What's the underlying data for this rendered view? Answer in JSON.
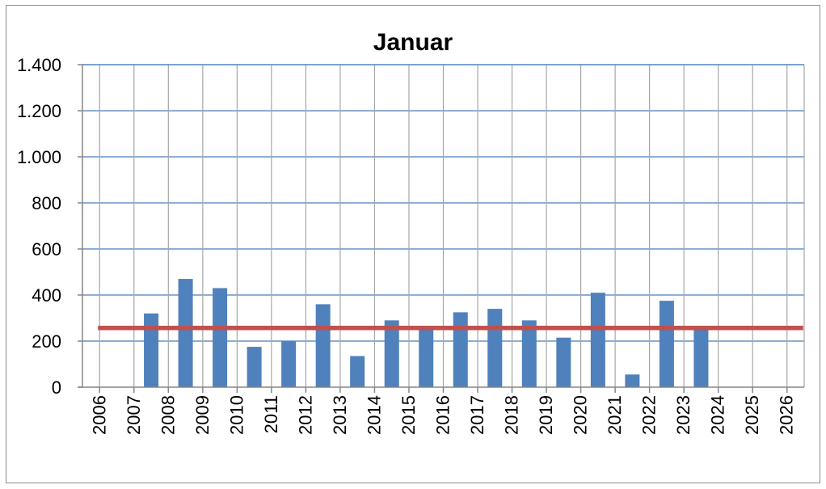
{
  "chart_data": {
    "type": "bar",
    "title": "Januar",
    "xlabel": "",
    "ylabel": "",
    "categories": [
      "2006",
      "2007",
      "2008",
      "2009",
      "2010",
      "2011",
      "2012",
      "2013",
      "2014",
      "2015",
      "2016",
      "2017",
      "2018",
      "2019",
      "2020",
      "2021",
      "2022",
      "2023",
      "2024",
      "2025",
      "2026"
    ],
    "values": [
      null,
      320,
      470,
      430,
      175,
      200,
      360,
      135,
      290,
      255,
      325,
      340,
      290,
      215,
      410,
      55,
      375,
      255,
      null,
      null,
      null
    ],
    "reference_line": 257,
    "ylim": [
      0,
      1400
    ],
    "yticks": [
      0,
      200,
      400,
      600,
      800,
      1000,
      1200,
      1400
    ],
    "ytick_labels": [
      "0",
      "200",
      "400",
      "600",
      "800",
      "1.000",
      "1.200",
      "1.400"
    ],
    "grid": true,
    "colors": {
      "bar": "#4f81bd",
      "reference_line": "#c0504d",
      "grid": "#4a7ebb",
      "axis": "#868686"
    }
  }
}
